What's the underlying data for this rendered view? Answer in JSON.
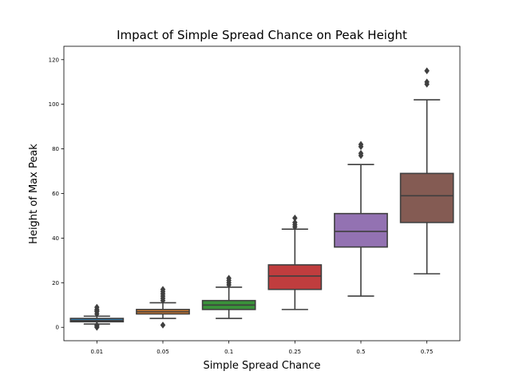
{
  "chart_data": {
    "type": "box",
    "title": "Impact of Simple Spread Chance on Peak Height",
    "xlabel": "Simple Spread Chance",
    "ylabel": "Height of Max Peak",
    "ylim": [
      -6,
      126
    ],
    "yticks": [
      0,
      20,
      40,
      60,
      80,
      100,
      120
    ],
    "grid": false,
    "categories": [
      "0.01",
      "0.05",
      "0.1",
      "0.25",
      "0.5",
      "0.75"
    ],
    "boxes": [
      {
        "q1": 2.5,
        "median": 3,
        "q3": 4,
        "whisker_low": 1.5,
        "whisker_high": 5,
        "fliers": [
          0,
          0.5,
          1,
          6,
          7,
          7.5,
          8,
          9
        ],
        "color": "#3274a1"
      },
      {
        "q1": 6,
        "median": 7,
        "q3": 8,
        "whisker_low": 4,
        "whisker_high": 11,
        "fliers": [
          1,
          12,
          13,
          14,
          15,
          16,
          17
        ],
        "color": "#e1812c"
      },
      {
        "q1": 8,
        "median": 10,
        "q3": 12,
        "whisker_low": 4,
        "whisker_high": 18,
        "fliers": [
          19,
          20,
          21,
          22
        ],
        "color": "#3a923a"
      },
      {
        "q1": 17,
        "median": 23,
        "q3": 28,
        "whisker_low": 8,
        "whisker_high": 44,
        "fliers": [
          45,
          46,
          47,
          49
        ],
        "color": "#c03d3e"
      },
      {
        "q1": 36,
        "median": 43,
        "q3": 51,
        "whisker_low": 14,
        "whisker_high": 73,
        "fliers": [
          77,
          78,
          81,
          82
        ],
        "color": "#9372b2"
      },
      {
        "q1": 47,
        "median": 59,
        "q3": 69,
        "whisker_low": 24,
        "whisker_high": 102,
        "fliers": [
          109,
          110,
          115
        ],
        "color": "#845b53"
      }
    ]
  }
}
